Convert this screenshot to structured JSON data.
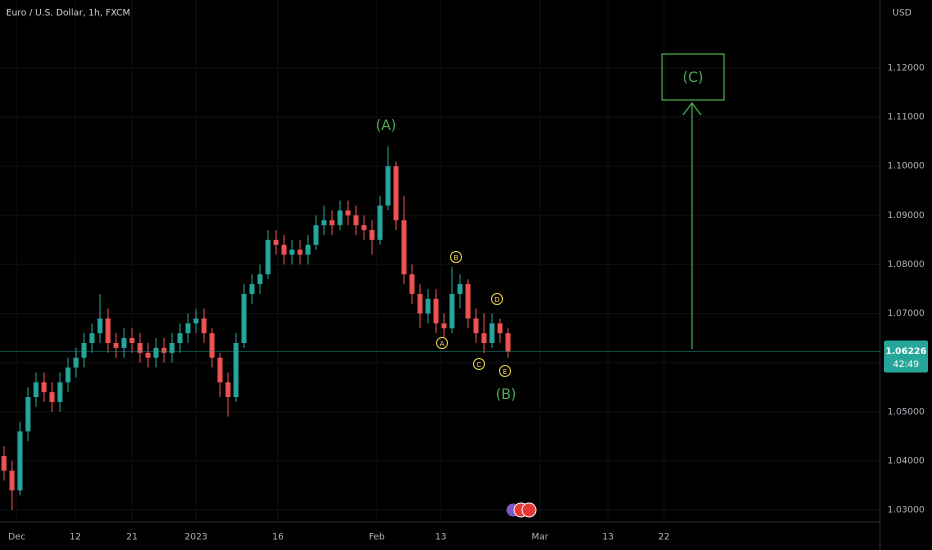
{
  "chart_data": {
    "type": "candlestick",
    "title": "Euro / U.S. Dollar, 1h, FXCM",
    "currency": "USD",
    "up_color": "#26a69a",
    "down_color": "#ef5350",
    "open": [
      1.041,
      1.038,
      1.034,
      1.046,
      1.053,
      1.056,
      1.054,
      1.052,
      1.056,
      1.059,
      1.061,
      1.064,
      1.066,
      1.069,
      1.064,
      1.063,
      1.065,
      1.064,
      1.062,
      1.061,
      1.063,
      1.062,
      1.064,
      1.066,
      1.068,
      1.069,
      1.066,
      1.061,
      1.056,
      1.053,
      1.064,
      1.074,
      1.076,
      1.078,
      1.085,
      1.084,
      1.082,
      1.083,
      1.082,
      1.084,
      1.088,
      1.089,
      1.088,
      1.091,
      1.09,
      1.088,
      1.087,
      1.085,
      1.092,
      1.1,
      1.089,
      1.078,
      1.074,
      1.07,
      1.073,
      1.068,
      1.067,
      1.074,
      1.076,
      1.069,
      1.066,
      1.064,
      1.068,
      1.066
    ],
    "high": [
      1.043,
      1.04,
      1.048,
      1.055,
      1.058,
      1.058,
      1.056,
      1.058,
      1.061,
      1.063,
      1.066,
      1.068,
      1.074,
      1.071,
      1.066,
      1.067,
      1.067,
      1.066,
      1.064,
      1.065,
      1.065,
      1.066,
      1.068,
      1.07,
      1.071,
      1.071,
      1.067,
      1.062,
      1.058,
      1.066,
      1.076,
      1.078,
      1.08,
      1.087,
      1.087,
      1.086,
      1.085,
      1.085,
      1.086,
      1.09,
      1.092,
      1.091,
      1.093,
      1.093,
      1.092,
      1.09,
      1.089,
      1.094,
      1.104,
      1.101,
      1.094,
      1.08,
      1.076,
      1.075,
      1.075,
      1.07,
      1.0795,
      1.078,
      1.077,
      1.071,
      1.07,
      1.07,
      1.069,
      1.067
    ],
    "low": [
      1.036,
      1.03,
      1.033,
      1.044,
      1.051,
      1.052,
      1.05,
      1.05,
      1.054,
      1.057,
      1.059,
      1.062,
      1.064,
      1.062,
      1.061,
      1.061,
      1.062,
      1.06,
      1.059,
      1.059,
      1.06,
      1.06,
      1.062,
      1.064,
      1.066,
      1.064,
      1.059,
      1.053,
      1.049,
      1.052,
      1.063,
      1.072,
      1.074,
      1.077,
      1.082,
      1.08,
      1.08,
      1.08,
      1.08,
      1.083,
      1.086,
      1.086,
      1.087,
      1.088,
      1.086,
      1.085,
      1.082,
      1.084,
      1.091,
      1.087,
      1.076,
      1.072,
      1.067,
      1.068,
      1.066,
      1.065,
      1.066,
      1.071,
      1.067,
      1.064,
      1.062,
      1.063,
      1.064,
      1.061
    ],
    "close": [
      1.038,
      1.034,
      1.046,
      1.053,
      1.056,
      1.054,
      1.052,
      1.056,
      1.059,
      1.061,
      1.064,
      1.066,
      1.069,
      1.064,
      1.063,
      1.065,
      1.064,
      1.062,
      1.061,
      1.063,
      1.062,
      1.064,
      1.066,
      1.068,
      1.069,
      1.066,
      1.061,
      1.056,
      1.053,
      1.064,
      1.074,
      1.076,
      1.078,
      1.085,
      1.084,
      1.082,
      1.083,
      1.082,
      1.084,
      1.088,
      1.089,
      1.088,
      1.091,
      1.09,
      1.088,
      1.087,
      1.085,
      1.092,
      1.1,
      1.089,
      1.078,
      1.074,
      1.07,
      1.073,
      1.068,
      1.067,
      1.074,
      1.076,
      1.069,
      1.066,
      1.064,
      1.068,
      1.066,
      1.0623
    ],
    "xlim": [
      0,
      110
    ],
    "xticks": [
      {
        "value": 2.1,
        "label": "Dec"
      },
      {
        "value": 9.4,
        "label": "12"
      },
      {
        "value": 16.5,
        "label": "21"
      },
      {
        "value": 24.5,
        "label": "2023"
      },
      {
        "value": 34.75,
        "label": "16"
      },
      {
        "value": 47.1,
        "label": "Feb"
      },
      {
        "value": 55.1,
        "label": "13"
      },
      {
        "value": 67.5,
        "label": "Mar"
      },
      {
        "value": 76,
        "label": "13"
      },
      {
        "value": 83,
        "label": "22"
      }
    ],
    "ylim": [
      1.02755,
      1.13385
    ],
    "yticks": [
      {
        "value": 1.03,
        "label": "1.03000"
      },
      {
        "value": 1.04,
        "label": "1.04000"
      },
      {
        "value": 1.05,
        "label": "1.05000"
      },
      {
        "value": 1.06,
        "label": "1.06000"
      },
      {
        "value": 1.07,
        "label": "1.07000"
      },
      {
        "value": 1.08,
        "label": "1.08000"
      },
      {
        "value": 1.09,
        "label": "1.09000"
      },
      {
        "value": 1.1,
        "label": "1.10000"
      },
      {
        "value": 1.11,
        "label": "1.11000"
      },
      {
        "value": 1.12,
        "label": "1.12000"
      }
    ],
    "last_price": 1.06226,
    "countdown": "42:49",
    "annotations": {
      "wave_a": "(A)",
      "wave_b": "(B)",
      "wave_c": "(C)",
      "sub_a": "A",
      "sub_b": "B",
      "sub_c": "C",
      "sub_d": "D",
      "sub_e": "E"
    }
  }
}
